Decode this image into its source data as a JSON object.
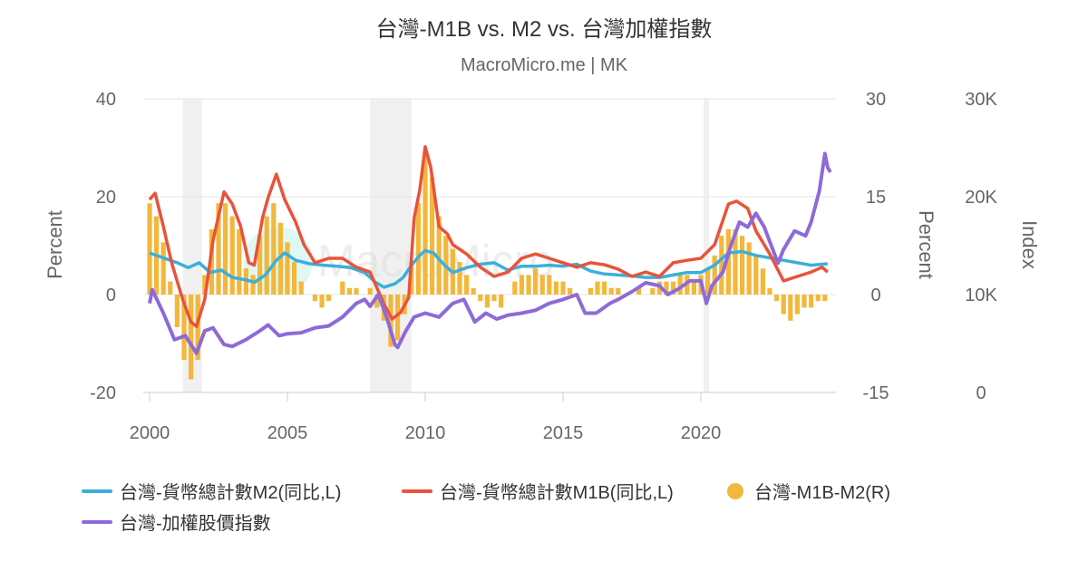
{
  "title": "台灣-M1B vs. M2 vs. 台灣加權指數",
  "subtitle": "MacroMicro.me | MK",
  "watermark": "MacroMicro",
  "chart_data": {
    "type": "line",
    "x_axis": {
      "ticks": [
        "2000",
        "2005",
        "2010",
        "2015",
        "2020"
      ],
      "range": [
        2000,
        2025
      ]
    },
    "y_axes": [
      {
        "id": "left",
        "label": "Percent",
        "range": [
          -20,
          40
        ],
        "ticks": [
          "-20",
          "0",
          "20",
          "40"
        ]
      },
      {
        "id": "right",
        "label": "Percent",
        "range": [
          -15,
          30
        ],
        "ticks": [
          "-15",
          "0",
          "15",
          "30"
        ]
      },
      {
        "id": "index",
        "label": "Index",
        "range": [
          0,
          30000
        ],
        "ticks": [
          "0",
          "10K",
          "20K",
          "30K"
        ]
      }
    ],
    "grid": true,
    "legend_position": "bottom",
    "recessions": [
      [
        2001.2,
        2001.9
      ],
      [
        2008.0,
        2009.5
      ],
      [
        2020.1,
        2020.3
      ]
    ],
    "series": [
      {
        "name": "台灣-貨幣總計數M2(同比,L)",
        "axis": "left",
        "type": "line",
        "color": "#3bafda",
        "points": [
          [
            2000,
            8.5
          ],
          [
            2000.5,
            7.5
          ],
          [
            2001,
            6.5
          ],
          [
            2001.4,
            5.5
          ],
          [
            2001.8,
            6.5
          ],
          [
            2002.2,
            4.5
          ],
          [
            2002.6,
            5
          ],
          [
            2003,
            3.5
          ],
          [
            2003.5,
            3
          ],
          [
            2003.8,
            2.5
          ],
          [
            2004.2,
            4
          ],
          [
            2004.6,
            7
          ],
          [
            2004.9,
            8.5
          ],
          [
            2005.3,
            7
          ],
          [
            2005.8,
            6.3
          ],
          [
            2006.3,
            6
          ],
          [
            2006.8,
            5.8
          ],
          [
            2007.3,
            5.5
          ],
          [
            2007.8,
            4.5
          ],
          [
            2008.2,
            2.5
          ],
          [
            2008.5,
            1.5
          ],
          [
            2008.9,
            2.2
          ],
          [
            2009.2,
            3.5
          ],
          [
            2009.5,
            6
          ],
          [
            2009.8,
            8
          ],
          [
            2010,
            9
          ],
          [
            2010.3,
            8.5
          ],
          [
            2010.7,
            6
          ],
          [
            2011,
            4.5
          ],
          [
            2011.5,
            5.5
          ],
          [
            2012,
            6.2
          ],
          [
            2012.5,
            6.5
          ],
          [
            2013,
            5
          ],
          [
            2013.5,
            5.8
          ],
          [
            2014,
            5.8
          ],
          [
            2014.5,
            6
          ],
          [
            2015,
            5.8
          ],
          [
            2015.5,
            6.2
          ],
          [
            2016,
            4.8
          ],
          [
            2016.5,
            4.2
          ],
          [
            2017,
            4
          ],
          [
            2017.5,
            3.8
          ],
          [
            2018,
            3.5
          ],
          [
            2018.5,
            3.5
          ],
          [
            2019,
            4
          ],
          [
            2019.5,
            4.5
          ],
          [
            2020,
            4.5
          ],
          [
            2020.5,
            6
          ],
          [
            2021,
            8.5
          ],
          [
            2021.5,
            8.8
          ],
          [
            2022,
            8
          ],
          [
            2022.5,
            7.5
          ],
          [
            2023,
            7
          ],
          [
            2023.5,
            6.5
          ],
          [
            2024,
            6
          ],
          [
            2024.6,
            6.3
          ]
        ]
      },
      {
        "name": "台灣-貨幣總計數M1B(同比,L)",
        "axis": "left",
        "type": "line",
        "color": "#e8533a",
        "points": [
          [
            2000,
            19.4
          ],
          [
            2000.2,
            20.7
          ],
          [
            2000.5,
            13.9
          ],
          [
            2000.8,
            6.5
          ],
          [
            2001.2,
            -1
          ],
          [
            2001.5,
            -5.6
          ],
          [
            2001.7,
            -6.5
          ],
          [
            2002,
            -1
          ],
          [
            2002.3,
            11
          ],
          [
            2002.7,
            21
          ],
          [
            2003,
            18.5
          ],
          [
            2003.3,
            14
          ],
          [
            2003.6,
            6.5
          ],
          [
            2003.8,
            6
          ],
          [
            2004.1,
            15.7
          ],
          [
            2004.3,
            19.8
          ],
          [
            2004.6,
            24.6
          ],
          [
            2004.9,
            19.4
          ],
          [
            2005.3,
            14.8
          ],
          [
            2005.6,
            10.2
          ],
          [
            2006,
            6.5
          ],
          [
            2006.5,
            7.4
          ],
          [
            2007,
            7.4
          ],
          [
            2007.5,
            5.6
          ],
          [
            2008,
            4.6
          ],
          [
            2008.5,
            -1.9
          ],
          [
            2008.8,
            -5
          ],
          [
            2009.1,
            -3.7
          ],
          [
            2009.4,
            -0.6
          ],
          [
            2009.6,
            15.7
          ],
          [
            2009.8,
            21.3
          ],
          [
            2010,
            30.2
          ],
          [
            2010.2,
            26
          ],
          [
            2010.5,
            13.9
          ],
          [
            2010.8,
            12.4
          ],
          [
            2011,
            10.2
          ],
          [
            2011.5,
            8.3
          ],
          [
            2012,
            5.6
          ],
          [
            2012.5,
            3.7
          ],
          [
            2013,
            4.6
          ],
          [
            2013.5,
            7.4
          ],
          [
            2014,
            8.3
          ],
          [
            2014.5,
            7.4
          ],
          [
            2015,
            6.5
          ],
          [
            2015.5,
            5.6
          ],
          [
            2016,
            6.5
          ],
          [
            2016.5,
            6.1
          ],
          [
            2017,
            5.2
          ],
          [
            2017.5,
            3.7
          ],
          [
            2018,
            4.6
          ],
          [
            2018.5,
            3.7
          ],
          [
            2019,
            6.5
          ],
          [
            2019.5,
            7
          ],
          [
            2020,
            7.4
          ],
          [
            2020.5,
            10.2
          ],
          [
            2021,
            18.5
          ],
          [
            2021.3,
            19.1
          ],
          [
            2021.7,
            17.6
          ],
          [
            2022,
            13
          ],
          [
            2022.5,
            8.3
          ],
          [
            2023,
            2.8
          ],
          [
            2023.5,
            3.7
          ],
          [
            2024,
            4.6
          ],
          [
            2024.4,
            5.6
          ],
          [
            2024.6,
            4.6
          ]
        ]
      },
      {
        "name": "台灣-M1B-M2(R)",
        "axis": "right",
        "type": "bar",
        "color": "#f3b73b",
        "start": 2000,
        "step": 0.25,
        "values": [
          14,
          12,
          8,
          2,
          -5,
          -10,
          -13,
          -10,
          3,
          10,
          14,
          14,
          12,
          10,
          4,
          3,
          9,
          12,
          14,
          11,
          8,
          5,
          2,
          0,
          -1,
          -2,
          -1,
          0,
          2,
          1,
          1,
          0,
          1,
          -2,
          -4,
          -8,
          -7,
          -3,
          5,
          14,
          22,
          18,
          12,
          9,
          7,
          5,
          3,
          1,
          -1,
          -2,
          -1,
          -2,
          0,
          2,
          3,
          3,
          4,
          3,
          3,
          2,
          2,
          1,
          0,
          0,
          1,
          2,
          2,
          1,
          1,
          0,
          0,
          1,
          0,
          1,
          2,
          2,
          2,
          3,
          3,
          2,
          3,
          4,
          6,
          9,
          10,
          10,
          9,
          8,
          6,
          4,
          1,
          -1,
          -3,
          -4,
          -3,
          -2,
          -2,
          -1,
          -1
        ]
      },
      {
        "name": "台灣-加權股價指數",
        "axis": "index",
        "type": "line",
        "color": "#8e6ad8",
        "points": [
          [
            2000,
            9100
          ],
          [
            2000.1,
            10500
          ],
          [
            2000.5,
            8100
          ],
          [
            2000.9,
            5400
          ],
          [
            2001.3,
            5800
          ],
          [
            2001.7,
            4000
          ],
          [
            2002,
            6300
          ],
          [
            2002.3,
            6600
          ],
          [
            2002.7,
            4900
          ],
          [
            2003,
            4700
          ],
          [
            2003.5,
            5400
          ],
          [
            2004,
            6300
          ],
          [
            2004.3,
            6900
          ],
          [
            2004.7,
            5800
          ],
          [
            2005,
            6000
          ],
          [
            2005.5,
            6100
          ],
          [
            2006,
            6600
          ],
          [
            2006.5,
            6800
          ],
          [
            2007,
            7700
          ],
          [
            2007.5,
            9100
          ],
          [
            2007.8,
            9500
          ],
          [
            2008,
            8800
          ],
          [
            2008.3,
            10000
          ],
          [
            2008.6,
            7700
          ],
          [
            2008.9,
            4900
          ],
          [
            2009,
            4600
          ],
          [
            2009.3,
            6300
          ],
          [
            2009.6,
            7700
          ],
          [
            2010,
            8100
          ],
          [
            2010.5,
            7700
          ],
          [
            2011,
            9100
          ],
          [
            2011.4,
            9500
          ],
          [
            2011.8,
            7200
          ],
          [
            2012.2,
            8100
          ],
          [
            2012.6,
            7500
          ],
          [
            2013,
            7900
          ],
          [
            2013.5,
            8100
          ],
          [
            2014,
            8400
          ],
          [
            2014.5,
            9100
          ],
          [
            2015,
            9500
          ],
          [
            2015.5,
            10000
          ],
          [
            2015.8,
            8100
          ],
          [
            2016.2,
            8100
          ],
          [
            2016.7,
            9100
          ],
          [
            2017,
            9500
          ],
          [
            2017.5,
            10300
          ],
          [
            2018,
            11200
          ],
          [
            2018.5,
            10900
          ],
          [
            2018.8,
            10000
          ],
          [
            2019.2,
            10600
          ],
          [
            2019.6,
            11400
          ],
          [
            2020,
            11400
          ],
          [
            2020.2,
            9100
          ],
          [
            2020.4,
            10900
          ],
          [
            2020.8,
            12300
          ],
          [
            2021.1,
            15100
          ],
          [
            2021.4,
            17400
          ],
          [
            2021.7,
            16900
          ],
          [
            2022,
            18300
          ],
          [
            2022.3,
            16900
          ],
          [
            2022.8,
            13200
          ],
          [
            2023,
            14600
          ],
          [
            2023.4,
            16500
          ],
          [
            2023.8,
            16000
          ],
          [
            2024,
            17400
          ],
          [
            2024.3,
            20600
          ],
          [
            2024.5,
            24400
          ],
          [
            2024.6,
            23000
          ],
          [
            2024.7,
            22500
          ]
        ]
      }
    ]
  }
}
